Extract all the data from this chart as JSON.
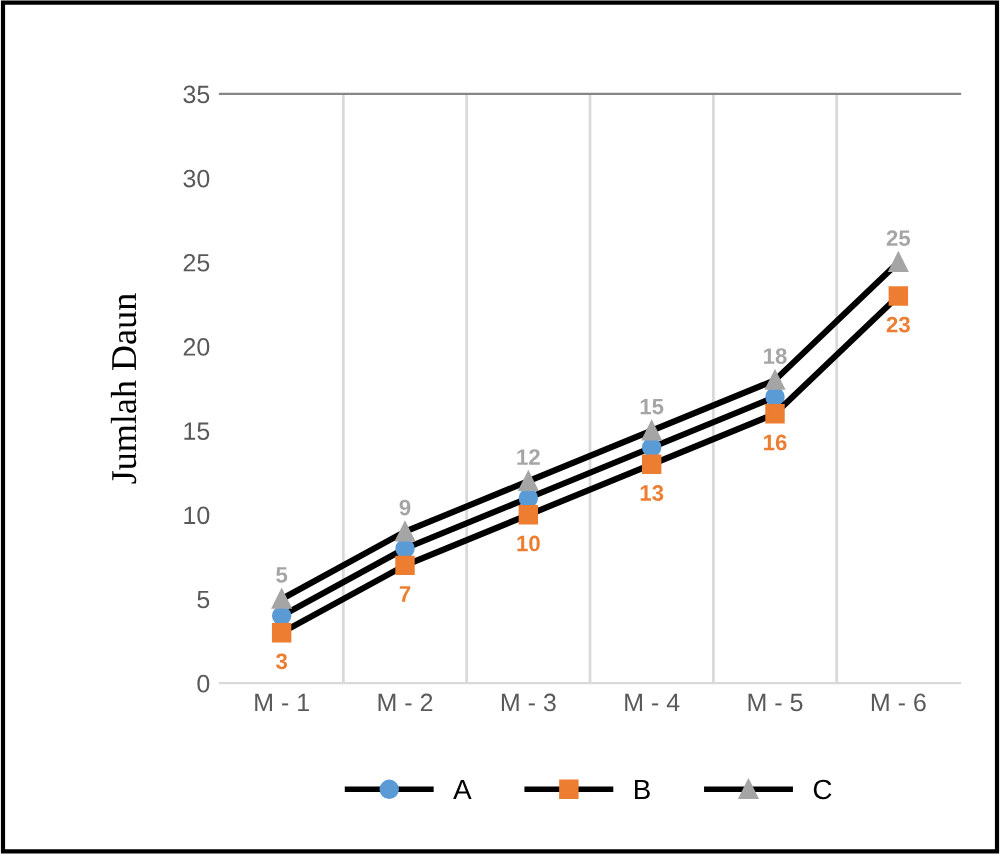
{
  "chart_data": {
    "type": "line",
    "ylabel": "Jumlah Daun",
    "categories": [
      "M - 1",
      "M - 2",
      "M - 3",
      "M - 4",
      "M - 5",
      "M - 6"
    ],
    "series": [
      {
        "name": "A",
        "color": "#5b9bd5",
        "marker": "circle",
        "values": [
          4,
          8,
          11,
          14,
          17,
          null
        ]
      },
      {
        "name": "B",
        "color": "#ed7d31",
        "marker": "square",
        "values": [
          3,
          7,
          10,
          13,
          16,
          23
        ],
        "value_labels": [
          "3",
          "7",
          "10",
          "13",
          "16",
          "23"
        ]
      },
      {
        "name": "C",
        "color": "#a5a5a5",
        "marker": "triangle",
        "values": [
          5,
          9,
          12,
          15,
          18,
          25
        ],
        "value_labels": [
          "5",
          "9",
          "12",
          "15",
          "18",
          "25"
        ]
      }
    ],
    "ylim": [
      0,
      35
    ],
    "yticks": [
      0,
      5,
      10,
      15,
      20,
      25,
      30,
      35
    ],
    "grid": "x",
    "legend": "bottom"
  }
}
